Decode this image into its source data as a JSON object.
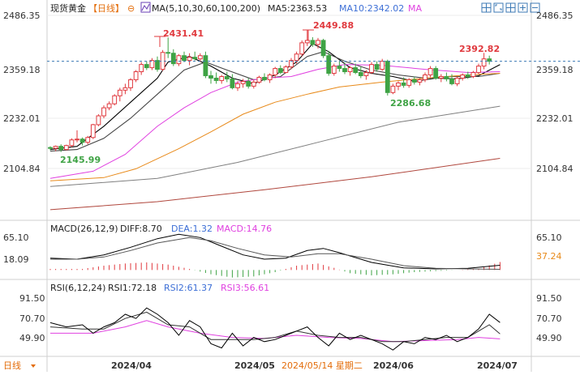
{
  "header": {
    "instrument": "现货黄金",
    "period": "【日线】",
    "ma_label": "MA(5,10,30,60,100,200)",
    "ma5_label": "MA5:2363.53",
    "ma10_label": "MA10:2342.02",
    "ma_more": "MA",
    "tool_icons": [
      "crosshair-icon",
      "zoom-fit-icon",
      "grid-icon",
      "zoom-in-icon",
      "zoom-out-icon"
    ]
  },
  "colors": {
    "up": "#e0393e",
    "down": "#3fa345",
    "ma5": "#000000",
    "ma10": "#444444",
    "ma30": "#e040e0",
    "ma60": "#e88a1a",
    "ma100": "#7f7f7f",
    "ma200": "#b0473d",
    "price_line": "#3d7ab5"
  },
  "annotations": {
    "high1": "2431.41",
    "high2": "2449.88",
    "low1": "2145.99",
    "low2": "2286.68",
    "last": "2392.82"
  },
  "price_axis": [
    "2486.35",
    "2359.18",
    "2232.01",
    "2104.84"
  ],
  "macd": {
    "label": "MACD(26,12,9)",
    "diff": "DIFF:8.70",
    "dea": "DEA:1.32",
    "macd": "MACD:14.76",
    "axis_left": [
      "65.10",
      "18.09"
    ],
    "axis_right": [
      "65.10",
      "37.24"
    ]
  },
  "rsi": {
    "label": "RSI(6,12,24)",
    "rsi1": "RSI1:72.18",
    "rsi2": "RSI2:61.37",
    "rsi3": "RSI3:56.61",
    "axis": [
      "91.50",
      "70.70",
      "49.90"
    ]
  },
  "footer": {
    "period_button": "日线",
    "dates": [
      "2024/04",
      "2024/05",
      "2024/05/14 星期二",
      "2024/06",
      "2024/07"
    ]
  },
  "chart_data": {
    "type": "candlestick",
    "title": "现货黄金",
    "y_ticks": [
      2486.35,
      2359.18,
      2232.01,
      2104.84
    ],
    "ylim": [
      2040,
      2500
    ],
    "candles": [
      [
        2157,
        2160,
        2150,
        2155
      ],
      [
        2155,
        2162,
        2148,
        2160
      ],
      [
        2160,
        2165,
        2146,
        2152
      ],
      [
        2152,
        2164,
        2150,
        2162
      ],
      [
        2162,
        2180,
        2158,
        2176
      ],
      [
        2176,
        2200,
        2170,
        2178
      ],
      [
        2178,
        2182,
        2162,
        2170
      ],
      [
        2170,
        2186,
        2165,
        2182
      ],
      [
        2182,
        2216,
        2178,
        2214
      ],
      [
        2214,
        2240,
        2210,
        2236
      ],
      [
        2236,
        2262,
        2230,
        2256
      ],
      [
        2256,
        2272,
        2250,
        2266
      ],
      [
        2266,
        2290,
        2262,
        2286
      ],
      [
        2286,
        2306,
        2272,
        2300
      ],
      [
        2300,
        2316,
        2290,
        2306
      ],
      [
        2306,
        2330,
        2298,
        2326
      ],
      [
        2326,
        2350,
        2320,
        2346
      ],
      [
        2346,
        2370,
        2338,
        2364
      ],
      [
        2364,
        2372,
        2350,
        2356
      ],
      [
        2356,
        2380,
        2350,
        2374
      ],
      [
        2374,
        2384,
        2346,
        2352
      ],
      [
        2352,
        2400,
        2348,
        2394
      ],
      [
        2394,
        2431.41,
        2380,
        2392
      ],
      [
        2392,
        2402,
        2360,
        2366
      ],
      [
        2366,
        2390,
        2360,
        2386
      ],
      [
        2386,
        2396,
        2370,
        2374
      ],
      [
        2374,
        2392,
        2362,
        2382
      ],
      [
        2382,
        2396,
        2374,
        2378
      ],
      [
        2378,
        2392,
        2370,
        2386
      ],
      [
        2386,
        2396,
        2330,
        2336
      ],
      [
        2336,
        2348,
        2316,
        2330
      ],
      [
        2330,
        2344,
        2316,
        2324
      ],
      [
        2324,
        2338,
        2316,
        2334
      ],
      [
        2334,
        2346,
        2320,
        2328
      ],
      [
        2328,
        2340,
        2302,
        2306
      ],
      [
        2306,
        2322,
        2298,
        2316
      ],
      [
        2316,
        2328,
        2306,
        2322
      ],
      [
        2322,
        2330,
        2304,
        2310
      ],
      [
        2310,
        2326,
        2304,
        2320
      ],
      [
        2320,
        2336,
        2316,
        2332
      ],
      [
        2332,
        2342,
        2322,
        2326
      ],
      [
        2326,
        2342,
        2318,
        2338
      ],
      [
        2338,
        2358,
        2330,
        2354
      ],
      [
        2354,
        2362,
        2340,
        2344
      ],
      [
        2344,
        2362,
        2342,
        2358
      ],
      [
        2358,
        2380,
        2352,
        2374
      ],
      [
        2374,
        2396,
        2366,
        2390
      ],
      [
        2390,
        2424,
        2384,
        2418
      ],
      [
        2418,
        2449.88,
        2410,
        2424
      ],
      [
        2424,
        2432,
        2408,
        2414
      ],
      [
        2414,
        2430,
        2404,
        2424
      ],
      [
        2424,
        2428,
        2380,
        2386
      ],
      [
        2386,
        2398,
        2336,
        2342
      ],
      [
        2342,
        2366,
        2336,
        2360
      ],
      [
        2360,
        2372,
        2346,
        2354
      ],
      [
        2354,
        2368,
        2340,
        2346
      ],
      [
        2346,
        2360,
        2336,
        2356
      ],
      [
        2356,
        2366,
        2340,
        2344
      ],
      [
        2344,
        2358,
        2330,
        2336
      ],
      [
        2336,
        2350,
        2326,
        2344
      ],
      [
        2344,
        2370,
        2340,
        2364
      ],
      [
        2364,
        2372,
        2346,
        2352
      ],
      [
        2352,
        2378,
        2348,
        2372
      ],
      [
        2372,
        2376,
        2286.68,
        2294
      ],
      [
        2294,
        2316,
        2290,
        2310
      ],
      [
        2310,
        2322,
        2300,
        2318
      ],
      [
        2318,
        2332,
        2306,
        2312
      ],
      [
        2312,
        2330,
        2306,
        2326
      ],
      [
        2326,
        2334,
        2314,
        2320
      ],
      [
        2320,
        2330,
        2312,
        2326
      ],
      [
        2326,
        2344,
        2320,
        2338
      ],
      [
        2338,
        2360,
        2330,
        2354
      ],
      [
        2354,
        2360,
        2326,
        2330
      ],
      [
        2330,
        2340,
        2320,
        2334
      ],
      [
        2334,
        2344,
        2322,
        2328
      ],
      [
        2328,
        2340,
        2312,
        2316
      ],
      [
        2316,
        2334,
        2310,
        2330
      ],
      [
        2330,
        2342,
        2324,
        2338
      ],
      [
        2338,
        2346,
        2328,
        2334
      ],
      [
        2334,
        2348,
        2330,
        2344
      ],
      [
        2344,
        2366,
        2340,
        2360
      ],
      [
        2360,
        2392.82,
        2352,
        2378
      ],
      [
        2378,
        2386,
        2364,
        2372
      ]
    ],
    "ma_series": [
      {
        "name": "MA5",
        "points": [
          [
            0,
            2152
          ],
          [
            5,
            2160
          ],
          [
            10,
            2210
          ],
          [
            15,
            2270
          ],
          [
            20,
            2330
          ],
          [
            22,
            2370
          ],
          [
            26,
            2384
          ],
          [
            30,
            2360
          ],
          [
            34,
            2330
          ],
          [
            38,
            2316
          ],
          [
            42,
            2338
          ],
          [
            46,
            2370
          ],
          [
            49,
            2416
          ],
          [
            52,
            2396
          ],
          [
            56,
            2356
          ],
          [
            60,
            2342
          ],
          [
            64,
            2334
          ],
          [
            68,
            2322
          ],
          [
            72,
            2330
          ],
          [
            76,
            2328
          ],
          [
            80,
            2336
          ],
          [
            84,
            2363.53
          ]
        ]
      },
      {
        "name": "MA10",
        "points": [
          [
            0,
            2148
          ],
          [
            5,
            2152
          ],
          [
            10,
            2180
          ],
          [
            15,
            2230
          ],
          [
            20,
            2290
          ],
          [
            25,
            2350
          ],
          [
            29,
            2370
          ],
          [
            33,
            2350
          ],
          [
            38,
            2326
          ],
          [
            43,
            2334
          ],
          [
            48,
            2384
          ],
          [
            51,
            2396
          ],
          [
            55,
            2372
          ],
          [
            60,
            2350
          ],
          [
            65,
            2338
          ],
          [
            70,
            2330
          ],
          [
            75,
            2334
          ],
          [
            80,
            2334
          ],
          [
            84,
            2342.02
          ]
        ]
      },
      {
        "name": "MA30",
        "points": [
          [
            0,
            2080
          ],
          [
            8,
            2098
          ],
          [
            14,
            2140
          ],
          [
            20,
            2210
          ],
          [
            25,
            2256
          ],
          [
            30,
            2294
          ],
          [
            35,
            2320
          ],
          [
            40,
            2330
          ],
          [
            45,
            2334
          ],
          [
            50,
            2352
          ],
          [
            55,
            2364
          ],
          [
            62,
            2362
          ],
          [
            70,
            2352
          ],
          [
            78,
            2344
          ],
          [
            84,
            2346
          ]
        ]
      },
      {
        "name": "MA60",
        "points": [
          [
            0,
            2074
          ],
          [
            10,
            2082
          ],
          [
            16,
            2104
          ],
          [
            24,
            2154
          ],
          [
            30,
            2196
          ],
          [
            36,
            2240
          ],
          [
            42,
            2270
          ],
          [
            48,
            2290
          ],
          [
            54,
            2308
          ],
          [
            62,
            2320
          ],
          [
            70,
            2330
          ],
          [
            78,
            2338
          ],
          [
            84,
            2342
          ]
        ]
      },
      {
        "name": "MA100",
        "points": [
          [
            0,
            2060
          ],
          [
            20,
            2080
          ],
          [
            35,
            2120
          ],
          [
            50,
            2170
          ],
          [
            65,
            2220
          ],
          [
            84,
            2260
          ]
        ]
      },
      {
        "name": "MA200",
        "points": [
          [
            0,
            2002
          ],
          [
            20,
            2022
          ],
          [
            40,
            2052
          ],
          [
            60,
            2084
          ],
          [
            84,
            2130
          ]
        ]
      }
    ],
    "macd": {
      "ylim": [
        -10,
        80
      ],
      "diff": [
        [
          0,
          22
        ],
        [
          5,
          20
        ],
        [
          10,
          28
        ],
        [
          15,
          42
        ],
        [
          20,
          58
        ],
        [
          24,
          66
        ],
        [
          28,
          60
        ],
        [
          32,
          44
        ],
        [
          36,
          28
        ],
        [
          40,
          20
        ],
        [
          44,
          22
        ],
        [
          48,
          36
        ],
        [
          51,
          40
        ],
        [
          54,
          32
        ],
        [
          60,
          14
        ],
        [
          66,
          4
        ],
        [
          72,
          2
        ],
        [
          78,
          3
        ],
        [
          84,
          8.7
        ]
      ],
      "dea": [
        [
          0,
          20
        ],
        [
          5,
          20
        ],
        [
          10,
          24
        ],
        [
          15,
          36
        ],
        [
          20,
          50
        ],
        [
          26,
          60
        ],
        [
          30,
          54
        ],
        [
          35,
          40
        ],
        [
          40,
          28
        ],
        [
          45,
          24
        ],
        [
          50,
          30
        ],
        [
          54,
          30
        ],
        [
          60,
          20
        ],
        [
          66,
          8
        ],
        [
          72,
          3
        ],
        [
          78,
          2
        ],
        [
          84,
          1.32
        ]
      ],
      "hist": [
        [
          0,
          2
        ],
        [
          6,
          2
        ],
        [
          10,
          8
        ],
        [
          14,
          12
        ],
        [
          18,
          14
        ],
        [
          22,
          10
        ],
        [
          26,
          2
        ],
        [
          30,
          -8
        ],
        [
          34,
          -14
        ],
        [
          38,
          -12
        ],
        [
          42,
          -4
        ],
        [
          46,
          8
        ],
        [
          50,
          12
        ],
        [
          53,
          4
        ],
        [
          56,
          -6
        ],
        [
          60,
          -10
        ],
        [
          64,
          -8
        ],
        [
          68,
          -4
        ],
        [
          72,
          -2
        ],
        [
          76,
          0
        ],
        [
          80,
          2
        ],
        [
          84,
          14.76
        ]
      ]
    },
    "rsi": {
      "ylim": [
        40,
        100
      ],
      "rsi1": [
        [
          0,
          72
        ],
        [
          3,
          68
        ],
        [
          6,
          70
        ],
        [
          8,
          62
        ],
        [
          10,
          68
        ],
        [
          12,
          72
        ],
        [
          14,
          80
        ],
        [
          16,
          76
        ],
        [
          18,
          86
        ],
        [
          20,
          80
        ],
        [
          22,
          72
        ],
        [
          24,
          60
        ],
        [
          26,
          74
        ],
        [
          28,
          68
        ],
        [
          30,
          52
        ],
        [
          32,
          48
        ],
        [
          34,
          62
        ],
        [
          36,
          50
        ],
        [
          38,
          58
        ],
        [
          40,
          54
        ],
        [
          42,
          56
        ],
        [
          44,
          60
        ],
        [
          46,
          64
        ],
        [
          48,
          68
        ],
        [
          50,
          58
        ],
        [
          52,
          50
        ],
        [
          54,
          62
        ],
        [
          56,
          56
        ],
        [
          58,
          60
        ],
        [
          60,
          56
        ],
        [
          62,
          52
        ],
        [
          64,
          46
        ],
        [
          66,
          54
        ],
        [
          68,
          52
        ],
        [
          70,
          58
        ],
        [
          72,
          56
        ],
        [
          74,
          60
        ],
        [
          76,
          54
        ],
        [
          78,
          58
        ],
        [
          80,
          66
        ],
        [
          82,
          80
        ],
        [
          84,
          72.18
        ]
      ],
      "rsi2": [
        [
          0,
          68
        ],
        [
          6,
          66
        ],
        [
          10,
          66
        ],
        [
          14,
          76
        ],
        [
          18,
          82
        ],
        [
          22,
          70
        ],
        [
          26,
          68
        ],
        [
          30,
          56
        ],
        [
          34,
          56
        ],
        [
          38,
          56
        ],
        [
          42,
          58
        ],
        [
          46,
          64
        ],
        [
          50,
          60
        ],
        [
          54,
          58
        ],
        [
          58,
          58
        ],
        [
          62,
          54
        ],
        [
          66,
          54
        ],
        [
          70,
          56
        ],
        [
          74,
          58
        ],
        [
          78,
          58
        ],
        [
          82,
          70
        ],
        [
          84,
          61.37
        ]
      ],
      "rsi3": [
        [
          0,
          62
        ],
        [
          8,
          62
        ],
        [
          14,
          68
        ],
        [
          18,
          74
        ],
        [
          22,
          68
        ],
        [
          28,
          62
        ],
        [
          34,
          58
        ],
        [
          40,
          57
        ],
        [
          46,
          60
        ],
        [
          52,
          58
        ],
        [
          58,
          57
        ],
        [
          64,
          54
        ],
        [
          70,
          55
        ],
        [
          76,
          56
        ],
        [
          80,
          58
        ],
        [
          84,
          56.61
        ]
      ]
    }
  }
}
